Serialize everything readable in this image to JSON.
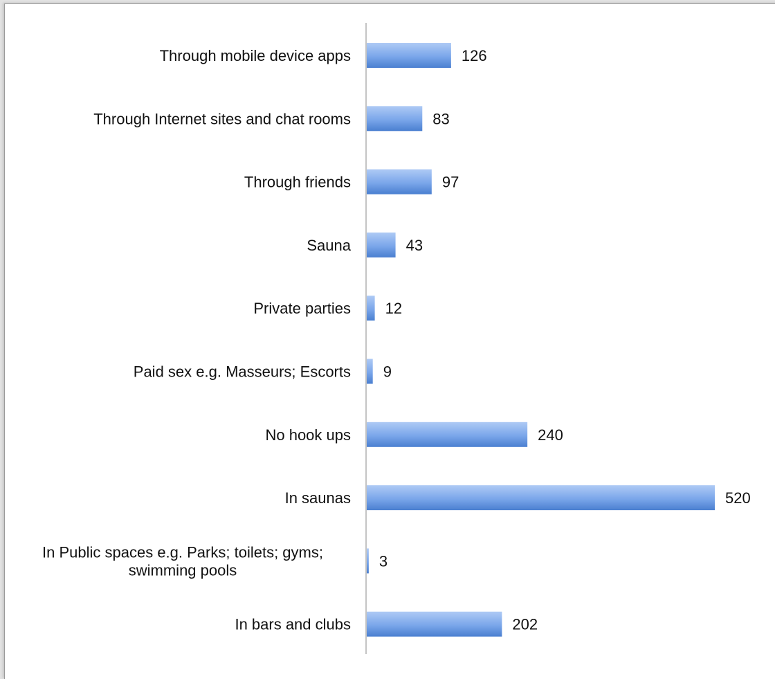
{
  "chart_data": {
    "type": "bar",
    "orientation": "horizontal",
    "title": "",
    "xlabel": "",
    "ylabel": "",
    "categories": [
      "Through mobile device apps",
      "Through Internet sites and chat rooms",
      "Through friends",
      "Sauna",
      "Private parties",
      "Paid sex e.g. Masseurs; Escorts",
      "No hook ups",
      "In saunas",
      "In Public spaces e.g. Parks; toilets; gyms; swimming pools",
      "In bars and clubs"
    ],
    "category_lines": [
      [
        "Through mobile device apps"
      ],
      [
        "Through Internet sites and chat rooms"
      ],
      [
        "Through friends"
      ],
      [
        "Sauna"
      ],
      [
        "Private parties"
      ],
      [
        "Paid sex e.g. Masseurs; Escorts"
      ],
      [
        "No hook ups"
      ],
      [
        "In saunas"
      ],
      [
        "In Public spaces e.g. Parks; toilets; gyms;",
        "swimming pools"
      ],
      [
        "In bars and clubs"
      ]
    ],
    "values": [
      126,
      83,
      97,
      43,
      12,
      9,
      240,
      520,
      3,
      202
    ],
    "xlim": [
      0,
      520
    ],
    "grid": false,
    "legend": "none",
    "data_labels": true,
    "colors": {
      "bar_light": "#aecaf5",
      "bar_mid": "#7aa6ea",
      "bar_dark": "#4a7fd0",
      "axis": "#8a8a8a",
      "text": "#111111"
    }
  }
}
